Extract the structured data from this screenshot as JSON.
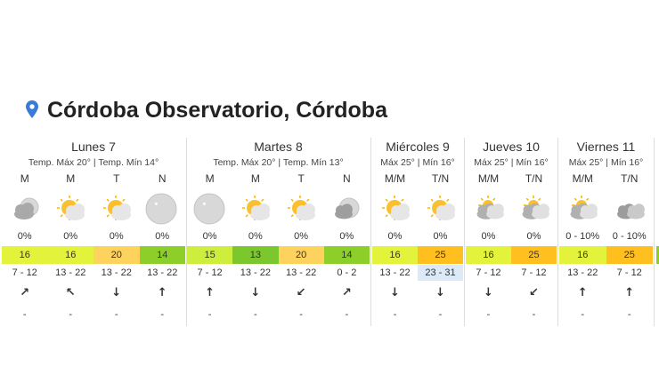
{
  "header": {
    "title": "Córdoba Observatorio, Córdoba"
  },
  "days": [
    {
      "name": "Lunes 7",
      "summary": "Temp. Máx 20° | Temp. Mín 14°",
      "periods": [
        {
          "label": "M",
          "precip": "0%",
          "temp": 16,
          "color": "#e3f23a",
          "wind": "7 - 12",
          "wind_dir": "↗",
          "gust": "-"
        },
        {
          "label": "M",
          "precip": "0%",
          "temp": 16,
          "color": "#e3f23a",
          "wind": "13 - 22",
          "wind_dir": "↖",
          "gust": "-"
        },
        {
          "label": "T",
          "precip": "0%",
          "temp": 20,
          "color": "#fdd35e",
          "wind": "13 - 22",
          "wind_dir": "↓",
          "gust": "-"
        },
        {
          "label": "N",
          "precip": "0%",
          "temp": 14,
          "color": "#8ccf2a",
          "wind": "13 - 22",
          "wind_dir": "↑",
          "gust": "-"
        }
      ]
    },
    {
      "name": "Martes 8",
      "summary": "Temp. Máx 20° | Temp. Mín 13°",
      "periods": [
        {
          "label": "M",
          "precip": "0%",
          "temp": 15,
          "color": "#cdee3c",
          "wind": "7 - 12",
          "wind_dir": "↑",
          "gust": "-"
        },
        {
          "label": "M",
          "precip": "0%",
          "temp": 13,
          "color": "#7cc62e",
          "wind": "13 - 22",
          "wind_dir": "↓",
          "gust": "-"
        },
        {
          "label": "T",
          "precip": "0%",
          "temp": 20,
          "color": "#fdd35e",
          "wind": "13 - 22",
          "wind_dir": "↙",
          "gust": "-"
        },
        {
          "label": "N",
          "precip": "0%",
          "temp": 14,
          "color": "#8ccf2a",
          "wind": "0 - 2",
          "wind_dir": "↗",
          "gust": "-"
        }
      ]
    },
    {
      "name": "Miércoles 9",
      "summary": "Máx 25° | Mín 16°",
      "periods": [
        {
          "label": "M/M",
          "precip": "0%",
          "temp": 16,
          "color": "#e3f23a",
          "wind": "13 - 22",
          "wind_dir": "↓",
          "gust": "-"
        },
        {
          "label": "T/N",
          "precip": "0%",
          "temp": 25,
          "color": "#ffbf1f",
          "wind": "23 - 31",
          "wind_bg": "#dce9f6",
          "wind_dir": "↓",
          "gust": "-"
        }
      ]
    },
    {
      "name": "Jueves 10",
      "summary": "Máx 25° | Mín 16°",
      "periods": [
        {
          "label": "M/M",
          "precip": "0%",
          "temp": 16,
          "color": "#e3f23a",
          "wind": "7 - 12",
          "wind_dir": "↓",
          "gust": "-"
        },
        {
          "label": "T/N",
          "precip": "0%",
          "temp": 25,
          "color": "#ffbf1f",
          "wind": "7 - 12",
          "wind_dir": "↙",
          "gust": "-"
        }
      ]
    },
    {
      "name": "Viernes 11",
      "summary": "Máx 25° | Mín 16°",
      "periods": [
        {
          "label": "M/M",
          "precip": "0 - 10%",
          "temp": 16,
          "color": "#e3f23a",
          "wind": "13 - 22",
          "wind_dir": "↑",
          "gust": "-"
        },
        {
          "label": "T/N",
          "precip": "0 - 10%",
          "temp": 25,
          "color": "#ffbf1f",
          "wind": "7 - 12",
          "wind_dir": "↑",
          "gust": "-"
        }
      ]
    }
  ]
}
